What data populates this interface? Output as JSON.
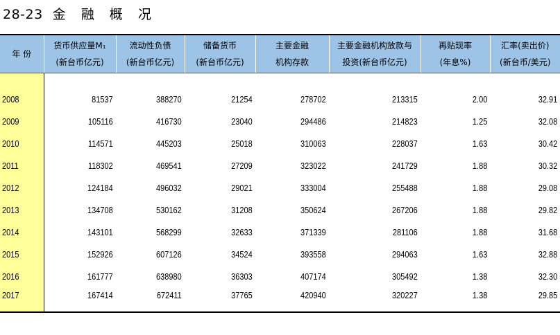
{
  "title": {
    "code": "28-23",
    "text": "金 融 概 况"
  },
  "columns": [
    {
      "line1": "年 份",
      "line2": ""
    },
    {
      "line1": "货币供应量M₁",
      "line2": "(新台币亿元)"
    },
    {
      "line1": "流动性负债",
      "line2": "(新台币亿元)"
    },
    {
      "line1": "储备货币",
      "line2": "(新台币亿元)"
    },
    {
      "line1": "主要金融",
      "line2": "机构存款"
    },
    {
      "line1": "主要金融机构放款与",
      "line2": "投资(新台币亿元)"
    },
    {
      "line1": "再贴现率",
      "line2": "(年息%)"
    },
    {
      "line1": "汇率(卖出价)",
      "line2": "(新台币/美元)"
    }
  ],
  "rows": [
    [
      "2008",
      "81537",
      "388270",
      "21254",
      "278702",
      "213315",
      "2.00",
      "32.91"
    ],
    [
      "2009",
      "105116",
      "416730",
      "23040",
      "294486",
      "214823",
      "1.25",
      "32.08"
    ],
    [
      "2010",
      "114571",
      "445203",
      "25018",
      "310063",
      "228037",
      "1.63",
      "30.42"
    ],
    [
      "2011",
      "118302",
      "469541",
      "27209",
      "323022",
      "241729",
      "1.88",
      "30.32"
    ],
    [
      "2012",
      "124184",
      "496032",
      "29021",
      "333004",
      "255488",
      "1.88",
      "29.08"
    ],
    [
      "2013",
      "134708",
      "530162",
      "31208",
      "350624",
      "267206",
      "1.88",
      "29.82"
    ],
    [
      "2014",
      "143101",
      "568299",
      "32633",
      "371339",
      "281106",
      "1.88",
      "31.68"
    ],
    [
      "2015",
      "152926",
      "607126",
      "34524",
      "393558",
      "294063",
      "1.63",
      "32.88"
    ],
    [
      "2016",
      "161777",
      "638980",
      "36303",
      "407174",
      "305492",
      "1.38",
      "32.30"
    ],
    [
      "2017",
      "167414",
      "672411",
      "37765",
      "420940",
      "320227",
      "1.38",
      "29.85"
    ]
  ],
  "colors": {
    "header_bg": "#9DC3E6",
    "year_col_bg": "#FFFF99"
  }
}
